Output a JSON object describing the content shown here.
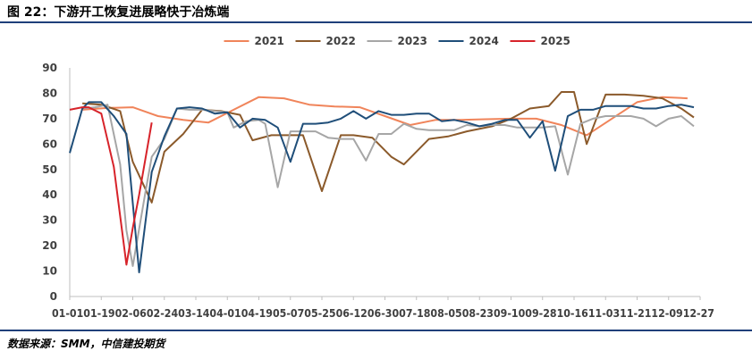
{
  "header": {
    "title": "图 22：下游开工恢复进展略快于冶炼端"
  },
  "footer": {
    "source": "数据来源：SMM，中信建投期货"
  },
  "colors": {
    "2021": "#f0845a",
    "2022": "#8b5a2b",
    "2023": "#a6a6a6",
    "2024": "#1f4e79",
    "2025": "#d7232a",
    "axis": "#bfbfbf",
    "rule": "#1f3f7a"
  },
  "chart_data": {
    "type": "line",
    "title": "",
    "xlabel": "",
    "ylabel": "",
    "ylim": [
      0,
      90
    ],
    "yticks": [
      0,
      10,
      20,
      30,
      40,
      50,
      60,
      70,
      80,
      90
    ],
    "grid": false,
    "legend_position": "top",
    "x_tick_labels": [
      "01-01",
      "01-19",
      "02-06",
      "02-24",
      "03-14",
      "04-01",
      "04-19",
      "05-07",
      "05-25",
      "06-12",
      "06-30",
      "07-18",
      "08-05",
      "08-23",
      "09-10",
      "09-28",
      "10-16",
      "11-03",
      "11-21",
      "12-09",
      "12-27"
    ],
    "x_tick_positions": [
      0,
      5,
      10,
      15,
      20,
      25,
      30,
      35,
      40,
      45,
      50,
      55,
      60,
      65,
      70,
      75,
      80,
      85,
      90,
      95,
      100
    ],
    "x_max": 100,
    "series": [
      {
        "name": "2021",
        "x": [
          2,
          6,
          10,
          14,
          18,
          22,
          26,
          30,
          34,
          38,
          42,
          46,
          50,
          54,
          58,
          62,
          66,
          70,
          74,
          78,
          82,
          86,
          90,
          94,
          98
        ],
        "y": [
          73.5,
          74.2,
          74.5,
          71,
          69.5,
          68.5,
          73.5,
          78.5,
          78,
          75.5,
          74.8,
          74.5,
          71,
          67.5,
          69.5,
          69.5,
          69.8,
          70,
          70,
          67.5,
          63.5,
          70,
          76.5,
          78.5,
          78
        ]
      },
      {
        "name": "2022",
        "x": [
          2,
          5,
          8,
          10,
          13,
          15,
          18,
          21,
          24,
          27,
          29,
          32,
          34,
          37,
          40,
          43,
          45,
          48,
          51,
          53,
          57,
          60,
          63,
          67,
          70,
          73,
          76,
          78,
          80,
          82,
          85,
          88,
          91,
          94,
          97,
          99
        ],
        "y": [
          76,
          75.5,
          73,
          53,
          37,
          57,
          64,
          73.5,
          73,
          71.5,
          61.5,
          63.5,
          63.5,
          63.5,
          41.5,
          63.5,
          63.5,
          62.5,
          55,
          52,
          62,
          63,
          65,
          67,
          70,
          74,
          75,
          80.5,
          80.5,
          60,
          79.5,
          79.5,
          79,
          78,
          74,
          70.5
        ]
      },
      {
        "name": "2023",
        "x": [
          2,
          4,
          6,
          8,
          9,
          10,
          12,
          13,
          15,
          17,
          19,
          21,
          23,
          25,
          26,
          28,
          30,
          31,
          33,
          35,
          37,
          39,
          41,
          43,
          45,
          47,
          49,
          51,
          53,
          55,
          57,
          59,
          61,
          63,
          65,
          67,
          69,
          71,
          73,
          75,
          77,
          79,
          81,
          83,
          85,
          87,
          89,
          91,
          93,
          95,
          97,
          99
        ],
        "y": [
          74,
          74.5,
          75.5,
          52,
          26,
          12,
          41,
          55,
          62,
          74,
          73.5,
          73.5,
          73,
          72.5,
          66.5,
          69,
          69.5,
          68,
          43,
          65,
          65,
          65,
          62.5,
          62,
          62,
          53.5,
          64,
          64,
          68,
          66,
          65.5,
          65.5,
          65.5,
          67.5,
          67,
          67.5,
          67.5,
          66.5,
          66.5,
          66.5,
          67,
          48,
          68,
          70,
          71,
          71,
          71,
          70,
          67,
          70,
          71,
          67
        ]
      },
      {
        "name": "2024",
        "x": [
          0,
          2,
          3,
          5,
          7,
          9,
          11,
          13,
          15,
          17,
          19,
          21,
          23,
          25,
          27,
          29,
          31,
          33,
          35,
          37,
          39,
          41,
          43,
          45,
          47,
          49,
          51,
          53,
          55,
          57,
          59,
          61,
          63,
          65,
          67,
          69,
          71,
          73,
          75,
          77,
          79,
          81,
          83,
          85,
          87,
          89,
          91,
          93,
          95,
          97,
          99
        ],
        "y": [
          56.5,
          74,
          76.5,
          76.5,
          71,
          64,
          9.5,
          49,
          63,
          74,
          74.5,
          74,
          72,
          72.5,
          66.5,
          70,
          69.5,
          66.5,
          53,
          68,
          68,
          68.5,
          70,
          73,
          70,
          73,
          71.5,
          71.5,
          72,
          72,
          69,
          69.5,
          68.5,
          67,
          68,
          69.5,
          69.5,
          62.5,
          69,
          49.5,
          71,
          73.5,
          73.5,
          75,
          75,
          75,
          74,
          74,
          75,
          75.5,
          74.5
        ]
      },
      {
        "name": "2025",
        "x": [
          0,
          2,
          3,
          5,
          7,
          9,
          10,
          11,
          13
        ],
        "y": [
          73.5,
          74.5,
          74.5,
          72,
          51,
          12.5,
          27,
          40,
          68.5
        ]
      }
    ]
  }
}
